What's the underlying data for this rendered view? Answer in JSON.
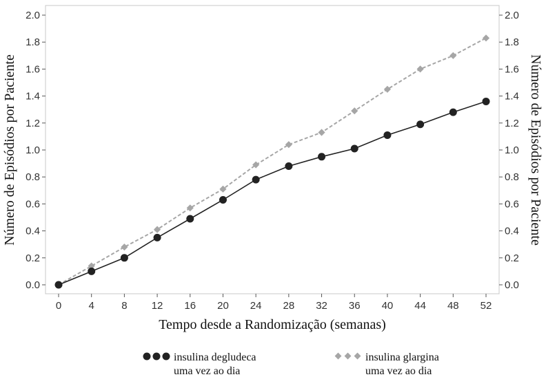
{
  "chart_data": {
    "type": "line",
    "xlabel": "Tempo desde a Randomização (semanas)",
    "ylabel_left": "Número de Episódios por Paciente",
    "ylabel_right": "Número de Episódios por Paciente",
    "xlim": [
      0,
      52
    ],
    "ylim": [
      0,
      2
    ],
    "x_ticks": [
      0,
      4,
      8,
      12,
      16,
      20,
      24,
      28,
      32,
      36,
      40,
      44,
      48,
      52
    ],
    "y_ticks": [
      0.0,
      0.2,
      0.4,
      0.6,
      0.8,
      1.0,
      1.2,
      1.4,
      1.6,
      1.8,
      2.0
    ],
    "y_tick_labels": [
      "0.0",
      "0.2",
      "0.4",
      "0.6",
      "0.8",
      "1.0",
      "1.2",
      "1.4",
      "1.6",
      "1.8",
      "2.0"
    ],
    "grid": false,
    "legend_position": "bottom",
    "series": [
      {
        "name": "insulina degludeca uma vez ao dia",
        "legend_lines": [
          "insulina degludeca",
          "uma vez ao dia"
        ],
        "color": "#222222",
        "marker": "circle",
        "line_style": "solid",
        "x": [
          0,
          4,
          8,
          12,
          16,
          20,
          24,
          28,
          32,
          36,
          40,
          44,
          48,
          52
        ],
        "y": [
          0.0,
          0.1,
          0.2,
          0.35,
          0.49,
          0.63,
          0.78,
          0.88,
          0.95,
          1.01,
          1.11,
          1.19,
          1.28,
          1.36
        ]
      },
      {
        "name": "insulina glargina uma vez ao dia",
        "legend_lines": [
          "insulina glargina",
          "uma vez ao dia"
        ],
        "color": "#a6a6a6",
        "marker": "diamond",
        "line_style": "dashed",
        "x": [
          0,
          4,
          8,
          12,
          16,
          20,
          24,
          28,
          32,
          36,
          40,
          44,
          48,
          52
        ],
        "y": [
          0.0,
          0.14,
          0.28,
          0.41,
          0.57,
          0.71,
          0.89,
          1.04,
          1.13,
          1.29,
          1.45,
          1.6,
          1.7,
          1.83
        ]
      }
    ]
  }
}
